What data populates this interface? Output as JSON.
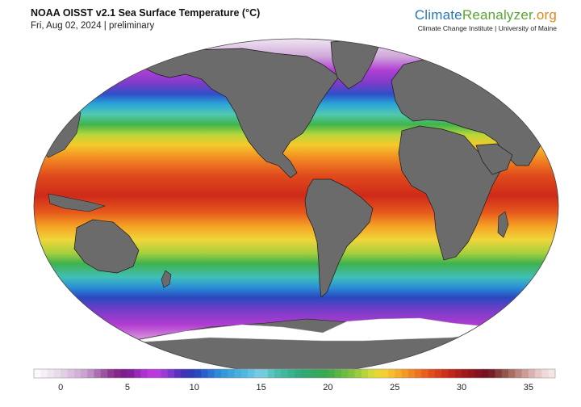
{
  "header": {
    "title": "NOAA OISST v2.1 Sea Surface Temperature (°C)",
    "subtitle": "Fri, Aug 02, 2024 | preliminary"
  },
  "brand": {
    "name_part1": "Climate",
    "name_part2": "Reanalyzer",
    "name_part3": ".org",
    "tagline": "Climate Change Institute | University of Maine"
  },
  "legend": {
    "min": -2,
    "max": 37,
    "tick_labels": [
      "0",
      "5",
      "10",
      "15",
      "20",
      "25",
      "30",
      "35"
    ],
    "tick_values": [
      0,
      5,
      10,
      15,
      20,
      25,
      30,
      35
    ]
  },
  "colors": {
    "land": "#6b6b6b",
    "coastline": "#1a1a1a",
    "ice": "#ffffff"
  }
}
